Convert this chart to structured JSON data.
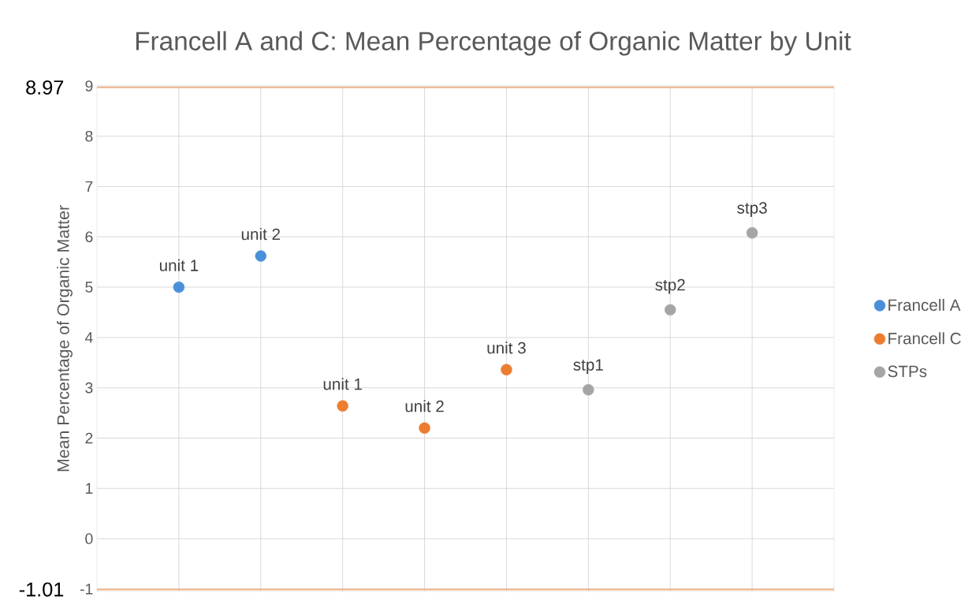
{
  "chart_data": {
    "type": "scatter",
    "title": "Francell A and C: Mean Percentage of Organic Matter by Unit",
    "ylabel": "Mean Percentage of Organic Matter",
    "categories": [
      null,
      null,
      null,
      null,
      null,
      null,
      null,
      null
    ],
    "series": [
      {
        "name": "Francell A",
        "color": "#4a90d9",
        "values": [
          5.0,
          5.62,
          null,
          null,
          null,
          null,
          null,
          null
        ],
        "value_labels": [
          "unit 1",
          "unit 2",
          null,
          null,
          null,
          null,
          null,
          null
        ]
      },
      {
        "name": "Francell C",
        "color": "#ed7d31",
        "values": [
          null,
          null,
          2.64,
          2.2,
          3.36,
          null,
          null,
          null
        ],
        "value_labels": [
          null,
          null,
          "unit 1",
          "unit 2",
          "unit 3",
          null,
          null,
          null
        ]
      },
      {
        "name": "STPs",
        "color": "#a5a5a5",
        "values": [
          null,
          null,
          null,
          null,
          null,
          2.96,
          4.55,
          6.08
        ],
        "value_labels": [
          null,
          null,
          null,
          null,
          null,
          "stp1",
          "stp2",
          "stp3"
        ]
      }
    ],
    "ylim": [
      -1.05,
      9
    ],
    "yticks": [
      -1,
      0,
      1,
      2,
      3,
      4,
      5,
      6,
      7,
      8,
      9
    ],
    "ref_lines": [
      {
        "axis": "y",
        "value": 8.97,
        "label": "8.97",
        "color": "#f4b183"
      },
      {
        "axis": "y",
        "value": -1.01,
        "label": "-1.01",
        "color": "#f4b183"
      }
    ],
    "grid": true,
    "legend": "right",
    "marker": "circle",
    "tick_labels": "y"
  }
}
